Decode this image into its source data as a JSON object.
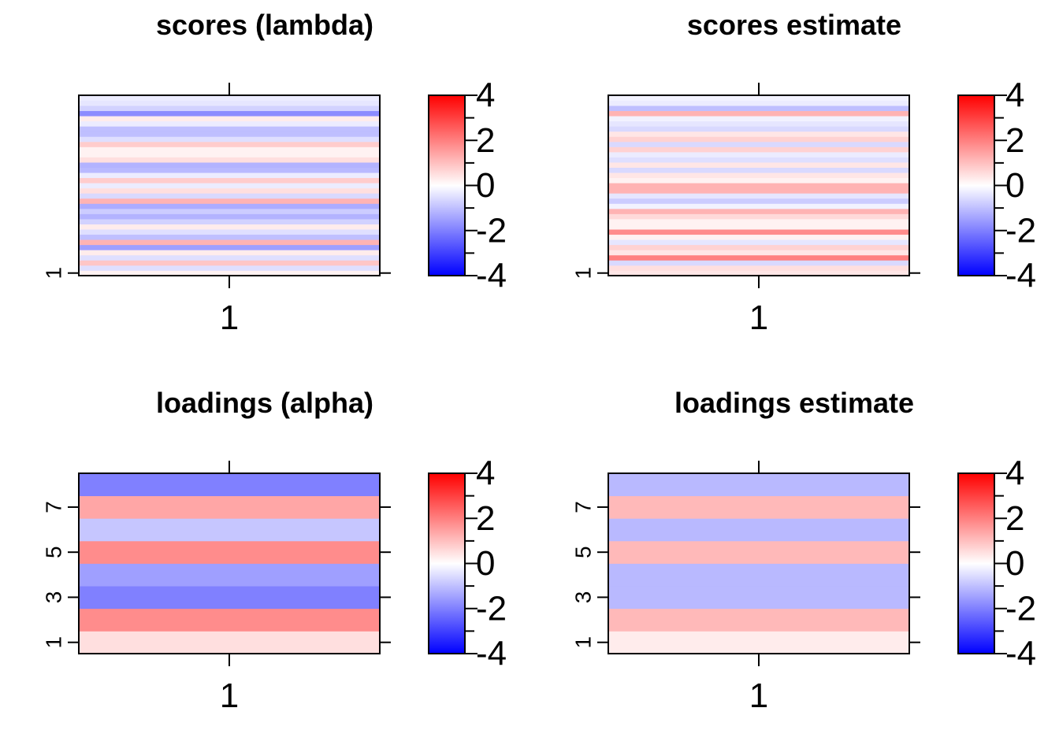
{
  "chart_data": [
    {
      "type": "heatmap",
      "title": "scores (lambda)",
      "xlabel": "",
      "ylabel": "",
      "x_tick_labels": [
        "1"
      ],
      "y_tick_labels": [
        "1"
      ],
      "y_tick_rows": [
        1
      ],
      "values": [
        0.2,
        -0.5,
        0.9,
        -0.5,
        0.3,
        -1.5,
        1.2,
        -1.0,
        -0.5,
        0.3,
        -0.7,
        -1.2,
        -0.8,
        -1.3,
        1.2,
        -0.6,
        0.5,
        -0.3,
        0.8,
        -0.3,
        -1.1,
        -1.2,
        0.5,
        0.2,
        0.2,
        0.8,
        -0.5,
        -1.0,
        -1.0,
        -0.3,
        0.3,
        -1.8,
        -0.7,
        -0.4,
        -0.3
      ],
      "colorbar": {
        "min": -4,
        "max": 4,
        "labels": [
          "4",
          "2",
          "0",
          "-2",
          "-4"
        ],
        "values": [
          4,
          2,
          0,
          -2,
          -4
        ]
      }
    },
    {
      "type": "heatmap",
      "title": "scores estimate",
      "xlabel": "",
      "ylabel": "",
      "x_tick_labels": [
        "1"
      ],
      "y_tick_labels": [
        "1"
      ],
      "y_tick_rows": [
        1
      ],
      "values": [
        0.4,
        0.5,
        -0.6,
        2.0,
        0.4,
        0.7,
        -0.4,
        0.2,
        1.8,
        0.2,
        0.2,
        0.6,
        1.2,
        -0.2,
        -0.8,
        -0.4,
        1.2,
        1.2,
        0.2,
        0.4,
        -0.6,
        0.4,
        -0.5,
        -0.3,
        0.7,
        -0.6,
        0.7,
        0.4,
        -0.6,
        -0.4,
        -0.2,
        1.2,
        -1.0,
        -0.3,
        -0.2
      ],
      "colorbar": {
        "min": -4,
        "max": 4,
        "labels": [
          "4",
          "2",
          "0",
          "-2",
          "-4"
        ],
        "values": [
          4,
          2,
          0,
          -2,
          -4
        ]
      }
    },
    {
      "type": "heatmap",
      "title": "loadings (alpha)",
      "xlabel": "",
      "ylabel": "",
      "x_tick_labels": [
        "1"
      ],
      "y_tick_labels": [
        "1",
        "3",
        "5",
        "7"
      ],
      "y_tick_rows": [
        1,
        3,
        5,
        7
      ],
      "values": [
        0.5,
        1.8,
        -2.0,
        -1.5,
        1.8,
        -0.9,
        1.4,
        -2.0
      ],
      "colorbar": {
        "min": -4,
        "max": 4,
        "labels": [
          "4",
          "2",
          "0",
          "-2",
          "-4"
        ],
        "values": [
          4,
          2,
          0,
          -2,
          -4
        ]
      }
    },
    {
      "type": "heatmap",
      "title": "loadings estimate",
      "xlabel": "",
      "ylabel": "",
      "x_tick_labels": [
        "1"
      ],
      "y_tick_labels": [
        "1",
        "3",
        "5",
        "7"
      ],
      "y_tick_rows": [
        1,
        3,
        5,
        7
      ],
      "values": [
        0.3,
        1.1,
        -1.1,
        -1.1,
        1.1,
        -1.1,
        1.1,
        -1.1
      ],
      "colorbar": {
        "min": -4,
        "max": 4,
        "labels": [
          "4",
          "2",
          "0",
          "-2",
          "-4"
        ],
        "values": [
          4,
          2,
          0,
          -2,
          -4
        ]
      }
    }
  ]
}
